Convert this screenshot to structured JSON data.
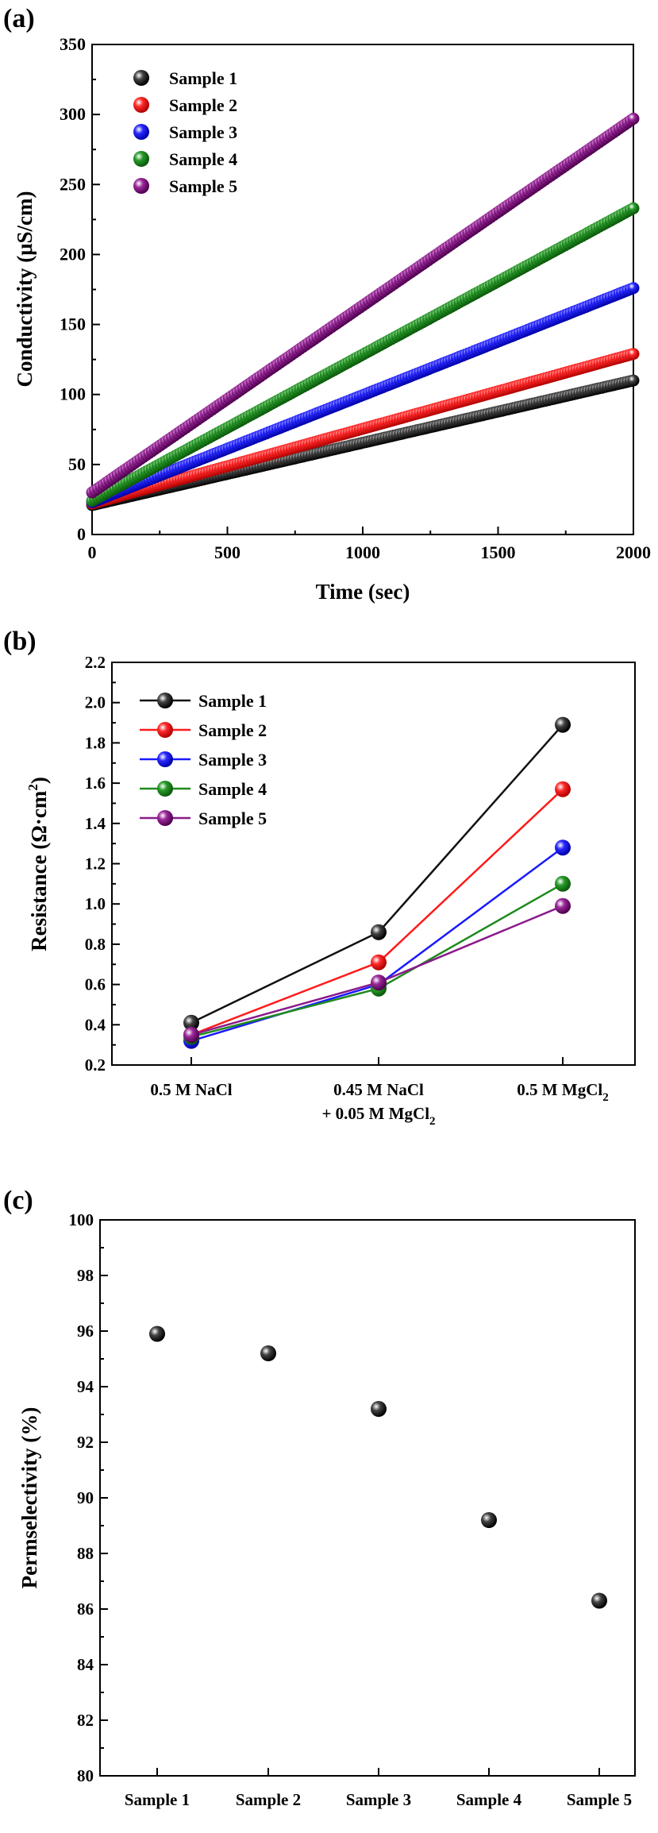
{
  "colors": {
    "sample_1": "#111111",
    "sample_2": "#ff1a1a",
    "sample_3": "#1a1aff",
    "sample_4": "#1f8a1f",
    "sample_5": "#8a1a8a"
  },
  "chart_data": [
    {
      "panel_label": "(a)",
      "type": "scatter",
      "title": "",
      "xlabel": "Time (sec)",
      "ylabel": "Conductivity (μS/cm)",
      "xlim": [
        0,
        2000
      ],
      "ylim": [
        0,
        350
      ],
      "xticks": [
        0,
        500,
        1000,
        1500,
        2000
      ],
      "yticks": [
        0,
        50,
        100,
        150,
        200,
        250,
        300,
        350
      ],
      "legend_position": "top-left",
      "series": [
        {
          "name": "Sample 1",
          "color_key": "sample_1",
          "x": [
            0,
            2000
          ],
          "values": [
            21,
            110
          ]
        },
        {
          "name": "Sample 2",
          "color_key": "sample_2",
          "x": [
            0,
            2000
          ],
          "values": [
            22,
            129
          ]
        },
        {
          "name": "Sample 3",
          "color_key": "sample_3",
          "x": [
            0,
            2000
          ],
          "values": [
            23,
            176
          ]
        },
        {
          "name": "Sample 4",
          "color_key": "sample_4",
          "x": [
            0,
            2000
          ],
          "values": [
            24,
            233
          ]
        },
        {
          "name": "Sample 5",
          "color_key": "sample_5",
          "x": [
            0,
            2000
          ],
          "values": [
            30,
            297
          ]
        }
      ]
    },
    {
      "panel_label": "(b)",
      "type": "line",
      "title": "",
      "xlabel": "",
      "ylabel": "Resistance (Ω·cm²)",
      "ylabel_parts": [
        "Resistance (Ω·cm",
        "2",
        ")"
      ],
      "categories": [
        "0.5 M NaCl",
        "0.45 M NaCl + 0.05 M MgCl2",
        "0.5 M MgCl2"
      ],
      "category_lines": [
        [
          {
            "t": "0.5 M NaCl"
          }
        ],
        [
          {
            "t": "0.45 M NaCl"
          },
          {
            "t": "+ 0.05 M MgCl",
            "sub": "2"
          }
        ],
        [
          {
            "t": "0.5 M MgCl",
            "sub": "2"
          }
        ]
      ],
      "ylim": [
        0.2,
        2.2
      ],
      "yticks": [
        "0.2",
        "0.4",
        "0.6",
        "0.8",
        "1.0",
        "1.2",
        "1.4",
        "1.6",
        "1.8",
        "2.0",
        "2.2"
      ],
      "legend_position": "top-left",
      "series": [
        {
          "name": "Sample 1",
          "color_key": "sample_1",
          "values": [
            0.41,
            0.86,
            1.89
          ]
        },
        {
          "name": "Sample 2",
          "color_key": "sample_2",
          "values": [
            0.35,
            0.71,
            1.57
          ]
        },
        {
          "name": "Sample 3",
          "color_key": "sample_3",
          "values": [
            0.32,
            0.6,
            1.28
          ]
        },
        {
          "name": "Sample 4",
          "color_key": "sample_4",
          "values": [
            0.34,
            0.58,
            1.1
          ]
        },
        {
          "name": "Sample 5",
          "color_key": "sample_5",
          "values": [
            0.35,
            0.61,
            0.99
          ]
        }
      ]
    },
    {
      "panel_label": "(c)",
      "type": "scatter",
      "title": "",
      "xlabel": "",
      "ylabel": "Permselectivity (%)",
      "categories": [
        "Sample 1",
        "Sample 2",
        "Sample 3",
        "Sample 4",
        "Sample 5"
      ],
      "ylim": [
        80,
        100
      ],
      "yticks": [
        80,
        82,
        84,
        86,
        88,
        90,
        92,
        94,
        96,
        98,
        100
      ],
      "series": [
        {
          "name": "Permselectivity",
          "color_key": "sample_1",
          "values": [
            95.9,
            95.2,
            93.2,
            89.2,
            86.3
          ]
        }
      ]
    }
  ]
}
